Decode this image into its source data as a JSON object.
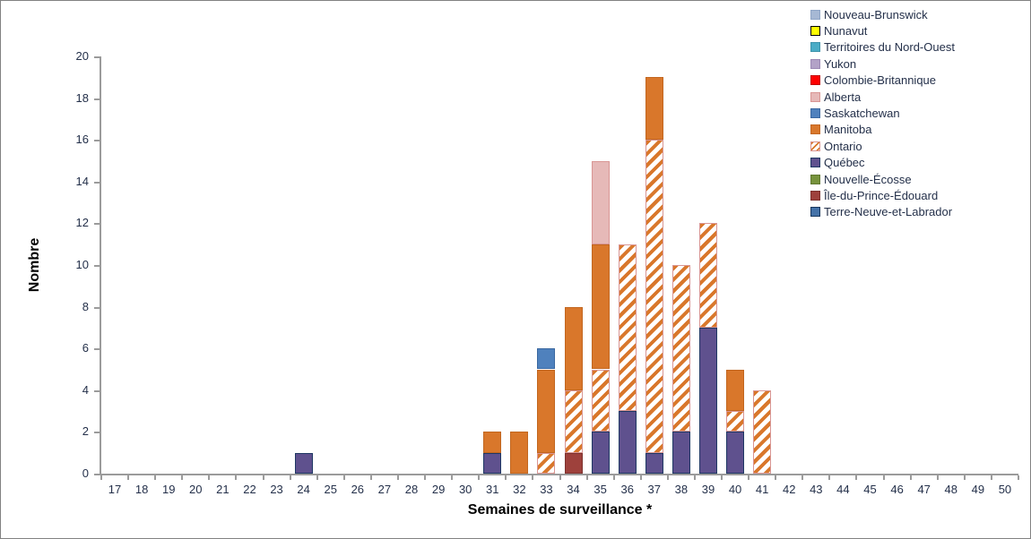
{
  "chart_data": {
    "type": "bar",
    "stacked": true,
    "title": "",
    "xlabel": "Semaines de surveillance *",
    "ylabel": "Nombre",
    "x_categories": [
      17,
      18,
      19,
      20,
      21,
      22,
      23,
      24,
      25,
      26,
      27,
      28,
      29,
      30,
      31,
      32,
      33,
      34,
      35,
      36,
      37,
      38,
      39,
      40,
      41,
      42,
      43,
      44,
      45,
      46,
      47,
      48,
      49,
      50
    ],
    "ylim": [
      0,
      20
    ],
    "y_tick_step": 2,
    "grid": false,
    "legend_position": "top-right",
    "stack_order_note": "segments stack bottom-to-top in reverse legend order",
    "series": [
      {
        "name": "Nouveau-Brunswick",
        "fill": "#a6b8d4",
        "border": "#8fa5c6",
        "values_by_week": {}
      },
      {
        "name": "Nunavut",
        "fill": "#ffff00",
        "border": "#000000",
        "values_by_week": {}
      },
      {
        "name": "Territoires du Nord-Ouest",
        "fill": "#4bacc6",
        "border": "#3d93ab",
        "values_by_week": {}
      },
      {
        "name": "Yukon",
        "fill": "#b3a2c7",
        "border": "#9c88b4",
        "values_by_week": {}
      },
      {
        "name": "Colombie-Britannique",
        "fill": "#ff0000",
        "border": "#c00000",
        "values_by_week": {}
      },
      {
        "name": "Alberta",
        "fill": "#e6b9b8",
        "border": "#d99694",
        "values_by_week": {
          "35": 4
        }
      },
      {
        "name": "Saskatchewan",
        "fill": "#4f81bd",
        "border": "#3a67a0",
        "values_by_week": {
          "33": 1
        }
      },
      {
        "name": "Manitoba",
        "fill": "#d9772b",
        "border": "#c2661f",
        "values_by_week": {
          "31": 1,
          "32": 2,
          "33": 4,
          "34": 4,
          "35": 6,
          "37": 3,
          "40": 2
        }
      },
      {
        "name": "Ontario",
        "fill": "#ffffff",
        "stripe": "#d9772b",
        "border": "#d99694",
        "pattern": "diagonal-hatch",
        "values_by_week": {
          "33": 1,
          "34": 3,
          "35": 3,
          "36": 8,
          "37": 15,
          "38": 8,
          "39": 5,
          "40": 1,
          "41": 4
        }
      },
      {
        "name": "Québec",
        "fill": "#5f518e",
        "border": "#1f3864",
        "values_by_week": {
          "24": 1,
          "31": 1,
          "35": 2,
          "36": 3,
          "37": 1,
          "38": 2,
          "39": 7,
          "40": 2
        }
      },
      {
        "name": "Nouvelle-Écosse",
        "fill": "#77933c",
        "border": "#5f7730",
        "values_by_week": {}
      },
      {
        "name": "Île-du-Prince-Édouard",
        "fill": "#9e413c",
        "border": "#7d322e",
        "values_by_week": {
          "34": 1
        }
      },
      {
        "name": "Terre-Neuve-et-Labrador",
        "fill": "#4472a8",
        "border": "#17375e",
        "values_by_week": {}
      }
    ]
  }
}
